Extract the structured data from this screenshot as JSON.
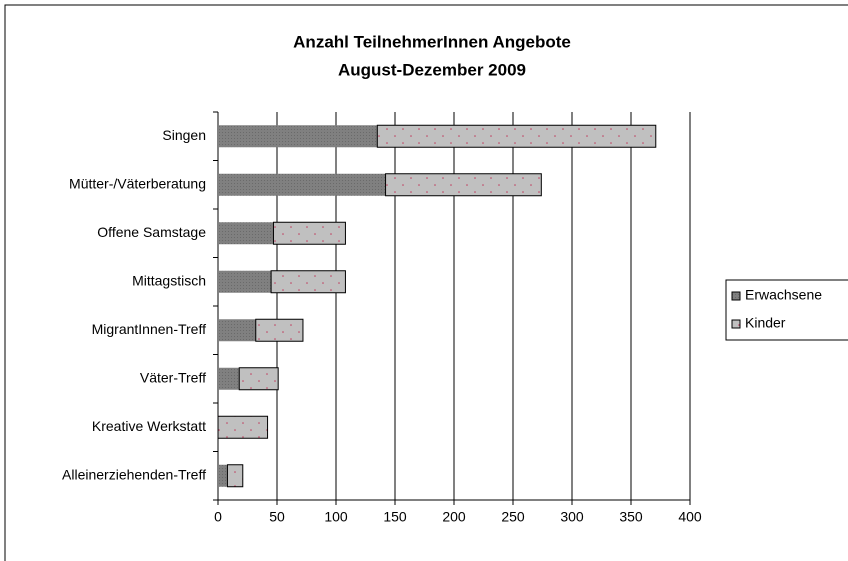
{
  "chart_data": {
    "type": "stacked-barh",
    "title": "Anzahl TeilnehmerInnen Angebote",
    "subtitle": "August-Dezember 2009",
    "categories": [
      "Singen",
      "Mütter-/Väterberatung",
      "Offene Samstage",
      "Mittagstisch",
      "MigrantInnen-Treff",
      "Väter-Treff",
      "Kreative Werkstatt",
      "Alleinerziehenden-Treff"
    ],
    "series": [
      {
        "name": "Erwachsene",
        "color": "#808080",
        "values": [
          135,
          142,
          47,
          45,
          32,
          18,
          0,
          8
        ]
      },
      {
        "name": "Kinder",
        "color": "#c0c0c0",
        "values": [
          236,
          132,
          61,
          63,
          40,
          33,
          42,
          13
        ]
      }
    ],
    "xlim": [
      0,
      400
    ],
    "xticks": [
      0,
      50,
      100,
      150,
      200,
      250,
      300,
      350,
      400
    ],
    "grid": true,
    "legend": "right"
  }
}
